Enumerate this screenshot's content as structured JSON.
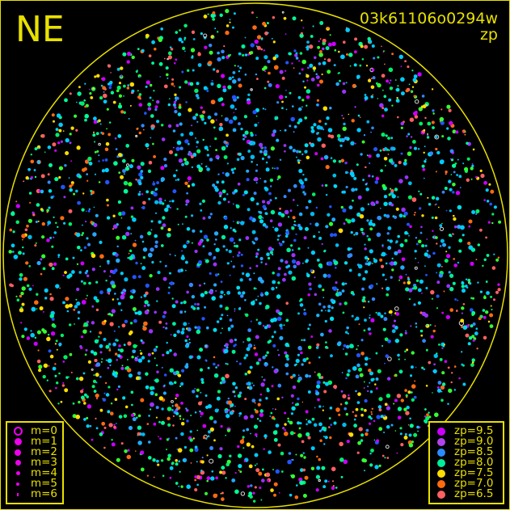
{
  "header": {
    "direction": "NE",
    "frame_id": "03k61106o0294w",
    "quantity": "zp"
  },
  "plot": {
    "horizon_color": "#e8e000",
    "marker_color": "#ee00ee"
  },
  "magnitude_legend": [
    {
      "label": "m=0",
      "style": "ring"
    },
    {
      "label": "m=1",
      "style": "dot"
    },
    {
      "label": "m=2",
      "style": "dot"
    },
    {
      "label": "m=3",
      "style": "dot"
    },
    {
      "label": "m=4",
      "style": "dot"
    },
    {
      "label": "m=5",
      "style": "dot"
    },
    {
      "label": "m=6",
      "style": "dot"
    }
  ],
  "zp_legend": [
    {
      "label": "zp=9.5",
      "color": "#cc00ff"
    },
    {
      "label": "zp=9.0",
      "color": "#b044ee"
    },
    {
      "label": "zp=8.5",
      "color": "#2a8cff"
    },
    {
      "label": "zp=8.0",
      "color": "#00ee99"
    },
    {
      "label": "zp=7.5",
      "color": "#ffdd00"
    },
    {
      "label": "zp=7.0",
      "color": "#ff6a10"
    },
    {
      "label": "zp=6.5",
      "color": "#ff6060"
    }
  ]
}
